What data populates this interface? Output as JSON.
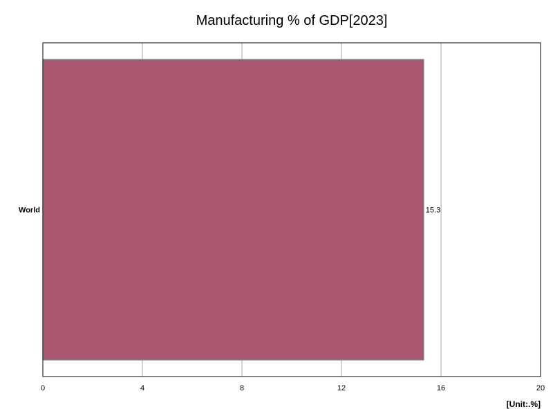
{
  "chart_data": {
    "type": "bar",
    "orientation": "horizontal",
    "title": "Manufacturing % of GDP[2023]",
    "unit_label": "[Unit:.%]",
    "categories": [
      "World"
    ],
    "values": [
      15.3
    ],
    "data_labels": [
      "15.3"
    ],
    "xlim": [
      0,
      20
    ],
    "x_ticks": [
      0,
      4,
      8,
      12,
      16,
      20
    ],
    "grid": true,
    "legend": "none",
    "bar_color": "#ab5670"
  }
}
